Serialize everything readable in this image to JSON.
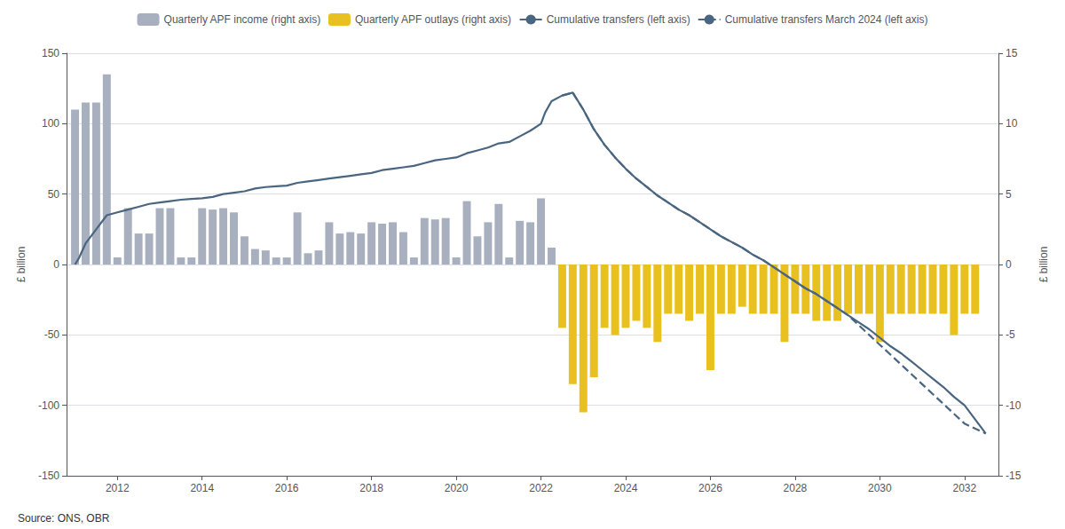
{
  "chart_data": {
    "type": "bar",
    "ylabel": "£ billion",
    "y2label": "£ billion",
    "annotations": [
      "Source: ONS, OBR"
    ],
    "xlim": [
      2010.8,
      2032.8
    ],
    "xticks": [
      2012,
      2014,
      2016,
      2018,
      2020,
      2022,
      2024,
      2026,
      2028,
      2030,
      2032
    ],
    "ylim": [
      -150,
      150
    ],
    "yticks": [
      -150,
      -100,
      -50,
      0,
      50,
      100,
      150
    ],
    "y2lim": [
      -15,
      15
    ],
    "y2ticks": [
      -15,
      -10,
      -5,
      0,
      5,
      10,
      15
    ],
    "grid": true,
    "legend": "top",
    "series": [
      {
        "name": "Quarterly APF income (right axis)",
        "type": "bar",
        "axis": "y2",
        "color": "#a8b0c0",
        "x": [
          2011.0,
          2011.25,
          2011.5,
          2011.75,
          2012.0,
          2012.25,
          2012.5,
          2012.75,
          2013.0,
          2013.25,
          2013.5,
          2013.75,
          2014.0,
          2014.25,
          2014.5,
          2014.75,
          2015.0,
          2015.25,
          2015.5,
          2015.75,
          2016.0,
          2016.25,
          2016.5,
          2016.75,
          2017.0,
          2017.25,
          2017.5,
          2017.75,
          2018.0,
          2018.25,
          2018.5,
          2018.75,
          2019.0,
          2019.25,
          2019.5,
          2019.75,
          2020.0,
          2020.25,
          2020.5,
          2020.75,
          2021.0,
          2021.25,
          2021.5,
          2021.75,
          2022.0,
          2022.25
        ],
        "values": [
          11.0,
          11.5,
          11.5,
          13.5,
          0.5,
          4.0,
          2.2,
          2.2,
          4.0,
          4.0,
          0.5,
          0.5,
          4.0,
          3.9,
          4.0,
          3.7,
          2.0,
          1.1,
          1.0,
          0.5,
          0.5,
          3.7,
          0.8,
          1.0,
          3.0,
          2.2,
          2.3,
          2.2,
          3.0,
          2.9,
          3.0,
          2.3,
          0.5,
          3.3,
          3.2,
          3.3,
          0.5,
          4.5,
          2.0,
          3.0,
          4.3,
          0.5,
          3.1,
          3.0,
          4.7,
          1.2
        ]
      },
      {
        "name": "Quarterly APF outlays (right axis)",
        "type": "bar",
        "axis": "y2",
        "color": "#e8c020",
        "x": [
          2022.5,
          2022.75,
          2023.0,
          2023.25,
          2023.5,
          2023.75,
          2024.0,
          2024.25,
          2024.5,
          2024.75,
          2025.0,
          2025.25,
          2025.5,
          2025.75,
          2026.0,
          2026.25,
          2026.5,
          2026.75,
          2027.0,
          2027.25,
          2027.5,
          2027.75,
          2028.0,
          2028.25,
          2028.5,
          2028.75,
          2029.0,
          2029.25,
          2029.5,
          2029.75,
          2030.0,
          2030.25,
          2030.5,
          2030.75,
          2031.0,
          2031.25,
          2031.5,
          2031.75,
          2032.0,
          2032.25
        ],
        "values": [
          -4.5,
          -8.5,
          -10.5,
          -8.0,
          -4.5,
          -5.0,
          -4.5,
          -4.0,
          -4.5,
          -5.5,
          -3.5,
          -3.5,
          -4.0,
          -3.5,
          -7.5,
          -3.5,
          -3.5,
          -3.0,
          -3.5,
          -3.5,
          -3.5,
          -5.5,
          -3.5,
          -3.5,
          -4.0,
          -4.0,
          -4.0,
          -3.5,
          -3.5,
          -3.5,
          -5.5,
          -3.5,
          -3.5,
          -3.5,
          -3.5,
          -3.5,
          -3.5,
          -5.0,
          -3.5,
          -3.5
        ]
      },
      {
        "name": "Cumulative transfers (left axis)",
        "type": "line",
        "line_style": "solid",
        "color": "#4a6580",
        "x": [
          2011.0,
          2011.1,
          2011.25,
          2011.5,
          2011.75,
          2012.0,
          2012.25,
          2012.5,
          2012.75,
          2013.0,
          2013.25,
          2013.5,
          2013.75,
          2014.0,
          2014.25,
          2014.5,
          2014.75,
          2015.0,
          2015.25,
          2015.5,
          2015.75,
          2016.0,
          2016.25,
          2016.5,
          2016.75,
          2017.0,
          2017.25,
          2017.5,
          2017.75,
          2018.0,
          2018.25,
          2018.5,
          2018.75,
          2019.0,
          2019.25,
          2019.5,
          2019.75,
          2020.0,
          2020.25,
          2020.5,
          2020.75,
          2021.0,
          2021.25,
          2021.5,
          2021.75,
          2022.0,
          2022.1,
          2022.25,
          2022.5,
          2022.75,
          2023.0,
          2023.25,
          2023.5,
          2023.75,
          2024.0,
          2024.25,
          2024.5,
          2024.75,
          2025.0,
          2025.25,
          2025.5,
          2025.75,
          2026.0,
          2026.25,
          2026.5,
          2026.75,
          2027.0,
          2027.25,
          2027.5,
          2027.75,
          2028.0,
          2028.25,
          2028.5,
          2028.75,
          2029.0,
          2029.25,
          2029.5,
          2029.75,
          2030.0,
          2030.25,
          2030.5,
          2030.75,
          2031.0,
          2031.25,
          2031.5,
          2031.75,
          2032.0,
          2032.5
        ],
        "values": [
          0,
          5,
          15,
          25,
          35,
          37,
          39,
          41,
          43,
          44,
          45,
          46,
          46.5,
          47,
          48,
          50,
          51,
          52,
          54,
          55,
          55.5,
          56,
          58,
          59,
          60,
          61,
          62,
          63,
          64,
          65,
          67,
          68,
          69,
          70,
          72,
          74,
          75,
          76,
          79,
          81,
          83,
          86,
          87,
          91,
          95,
          100,
          108,
          116,
          120,
          122,
          110,
          96,
          85,
          76,
          68,
          61,
          55,
          49,
          44,
          39,
          35,
          30,
          25,
          20,
          16,
          12,
          7,
          3,
          -2,
          -7,
          -12,
          -17,
          -21,
          -26,
          -31,
          -36,
          -41,
          -46,
          -52,
          -58,
          -63,
          -69,
          -75,
          -81,
          -87,
          -94,
          -100,
          -120
        ]
      },
      {
        "name": "Cumulative transfers March 2024 (left axis)",
        "type": "line",
        "line_style": "dashed",
        "color": "#4a6580",
        "x": [
          2022.5,
          2022.75,
          2023.0,
          2023.25,
          2023.5,
          2023.75,
          2024.0,
          2024.25,
          2024.5,
          2024.75,
          2025.0,
          2025.25,
          2025.5,
          2025.75,
          2026.0,
          2026.25,
          2026.5,
          2026.75,
          2027.0,
          2027.25,
          2027.5,
          2027.75,
          2028.0,
          2028.25,
          2028.5,
          2028.75,
          2029.0,
          2029.25,
          2029.5,
          2029.75,
          2030.0,
          2030.25,
          2030.5,
          2030.75,
          2031.0,
          2031.25,
          2031.5,
          2031.75,
          2032.0,
          2032.5
        ],
        "values": [
          120,
          122,
          110,
          96,
          85,
          76,
          68,
          61,
          55,
          49,
          44,
          39,
          35,
          30,
          25,
          20,
          16,
          12,
          7,
          3,
          -2,
          -7,
          -12,
          -17,
          -21,
          -26,
          -31,
          -36,
          -43,
          -50,
          -57,
          -64,
          -71,
          -78,
          -85,
          -92,
          -99,
          -106,
          -113,
          -120
        ]
      }
    ]
  }
}
